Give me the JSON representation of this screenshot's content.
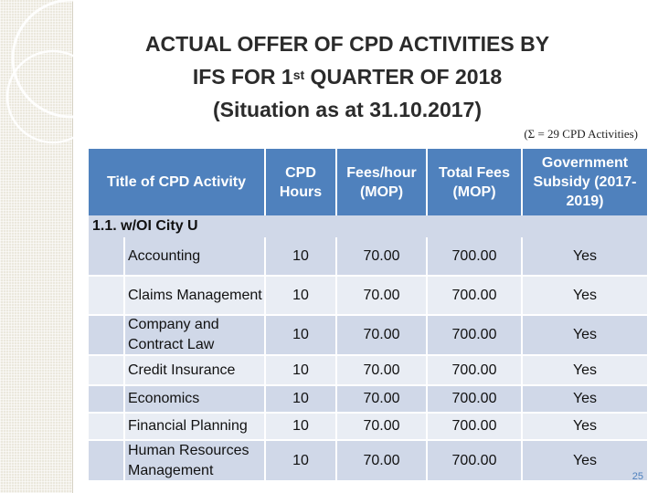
{
  "title": {
    "line1": "ACTUAL OFFER OF CPD ACTIVITIES BY",
    "line2_pre": "IFS FOR 1",
    "line2_sup": "st",
    "line2_post": " QUARTER OF 2018",
    "line3": "(Situation as at 31.10.2017)"
  },
  "subnote": "(Σ = 29 CPD Activities)",
  "table": {
    "headers": {
      "activity": "Title of CPD Activity",
      "hours": "CPD Hours",
      "fees_hour": "Fees/hour (MOP)",
      "total_fees": "Total Fees (MOP)",
      "subsidy": "Government Subsidy (2017-2019)"
    },
    "section": "1.1.   w/OI City U",
    "rows": [
      {
        "activity": "Accounting",
        "hours": "10",
        "fees_hour": "70.00",
        "total_fees": "700.00",
        "subsidy": "Yes"
      },
      {
        "activity": "Claims Management",
        "hours": "10",
        "fees_hour": "70.00",
        "total_fees": "700.00",
        "subsidy": "Yes"
      },
      {
        "activity": "Company and Contract Law",
        "hours": "10",
        "fees_hour": "70.00",
        "total_fees": "700.00",
        "subsidy": "Yes"
      },
      {
        "activity": "Credit Insurance",
        "hours": "10",
        "fees_hour": "70.00",
        "total_fees": "700.00",
        "subsidy": "Yes"
      },
      {
        "activity": "Economics",
        "hours": "10",
        "fees_hour": "70.00",
        "total_fees": "700.00",
        "subsidy": "Yes"
      },
      {
        "activity": "Financial Planning",
        "hours": "10",
        "fees_hour": "70.00",
        "total_fees": "700.00",
        "subsidy": "Yes"
      },
      {
        "activity": "Human Resources Management",
        "hours": "10",
        "fees_hour": "70.00",
        "total_fees": "700.00",
        "subsidy": "Yes"
      }
    ]
  },
  "page_number": "25",
  "colors": {
    "header": "#4f81bd",
    "row_dark": "#d0d8e8",
    "row_light": "#e9edf4",
    "title": "#2b2b2b"
  }
}
